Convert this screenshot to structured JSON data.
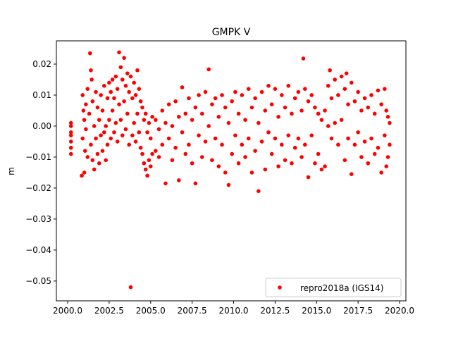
{
  "chart_data": {
    "type": "scatter",
    "title": "GMPK V",
    "xlabel": "",
    "ylabel": "m",
    "xlim": [
      1999.32,
      2020.38
    ],
    "ylim": [
      -0.0564,
      0.0275
    ],
    "xticks": [
      2000.0,
      2002.5,
      2005.0,
      2007.5,
      2010.0,
      2012.5,
      2015.0,
      2017.5,
      2020.0
    ],
    "xtick_labels": [
      "2000.0",
      "2002.5",
      "2005.0",
      "2007.5",
      "2010.0",
      "2012.5",
      "2015.0",
      "2017.5",
      "2020.0"
    ],
    "yticks": [
      0.02,
      0.01,
      0.0,
      -0.01,
      -0.02,
      -0.03,
      -0.04,
      -0.05
    ],
    "ytick_labels": [
      "0.02",
      "0.01",
      "0.00",
      "−0.01",
      "−0.02",
      "−0.03",
      "−0.04",
      "−0.05"
    ],
    "grid": false,
    "legend": {
      "placement": "lower-right",
      "entries": [
        "repro2018a (IGS14)"
      ]
    },
    "series": [
      {
        "name": "repro2018a (IGS14)",
        "color": "#ff0000",
        "marker": "dot",
        "points": [
          [
            2000.2,
            0.001
          ],
          [
            2000.2,
            -0.002
          ],
          [
            2000.2,
            -0.005
          ],
          [
            2000.2,
            -0.009
          ],
          [
            2000.2,
            -0.007
          ],
          [
            2000.2,
            -0.003
          ],
          [
            2000.2,
            0.0
          ],
          [
            2000.85,
            -0.016
          ],
          [
            2000.9,
            0.01
          ],
          [
            2000.9,
            -0.004
          ],
          [
            2000.95,
            0.005
          ],
          [
            2001.0,
            -0.015
          ],
          [
            2001.0,
            0.002
          ],
          [
            2001.05,
            -0.008
          ],
          [
            2001.1,
            0.007
          ],
          [
            2001.1,
            -0.001
          ],
          [
            2001.2,
            0.012
          ],
          [
            2001.2,
            -0.01
          ],
          [
            2001.3,
            0.004
          ],
          [
            2001.35,
            0.0235
          ],
          [
            2001.4,
            0.018
          ],
          [
            2001.4,
            -0.006
          ],
          [
            2001.45,
            0.015
          ],
          [
            2001.5,
            -0.011
          ],
          [
            2001.5,
            0.008
          ],
          [
            2001.6,
            0.0
          ],
          [
            2001.6,
            -0.014
          ],
          [
            2001.7,
            0.011
          ],
          [
            2001.7,
            -0.004
          ],
          [
            2001.8,
            0.006
          ],
          [
            2001.8,
            -0.009
          ],
          [
            2001.9,
            0.002
          ],
          [
            2001.9,
            -0.012
          ],
          [
            2002.0,
            0.01
          ],
          [
            2002.0,
            -0.003
          ],
          [
            2002.1,
            0.005
          ],
          [
            2002.1,
            -0.008
          ],
          [
            2002.2,
            0.013
          ],
          [
            2002.2,
            -0.002
          ],
          [
            2002.3,
            0.0
          ],
          [
            2002.3,
            -0.011
          ],
          [
            2002.4,
            0.009
          ],
          [
            2002.4,
            -0.006
          ],
          [
            2002.5,
            0.014
          ],
          [
            2002.5,
            0.002
          ],
          [
            2002.6,
            0.011
          ],
          [
            2002.6,
            -0.004
          ],
          [
            2002.7,
            0.015
          ],
          [
            2002.7,
            0.005
          ],
          [
            2002.8,
            0.009
          ],
          [
            2002.8,
            -0.002
          ],
          [
            2002.9,
            0.016
          ],
          [
            2002.9,
            0.001
          ],
          [
            2003.0,
            0.012
          ],
          [
            2003.0,
            -0.005
          ],
          [
            2003.1,
            0.0238
          ],
          [
            2003.1,
            0.007
          ],
          [
            2003.2,
            0.019
          ],
          [
            2003.2,
            0.002
          ],
          [
            2003.3,
            0.015
          ],
          [
            2003.3,
            -0.003
          ],
          [
            2003.4,
            0.022
          ],
          [
            2003.4,
            0.008
          ],
          [
            2003.5,
            0.013
          ],
          [
            2003.5,
            -0.001
          ],
          [
            2003.6,
            0.017
          ],
          [
            2003.6,
            0.004
          ],
          [
            2003.7,
            0.011
          ],
          [
            2003.7,
            -0.006
          ],
          [
            2003.8,
            0.016
          ],
          [
            2003.8,
            -0.052
          ],
          [
            2003.9,
            0.009
          ],
          [
            2003.9,
            -0.003
          ],
          [
            2004.0,
            0.014
          ],
          [
            2004.0,
            0.001
          ],
          [
            2004.1,
            0.01
          ],
          [
            2004.1,
            -0.005
          ],
          [
            2004.2,
            0.018
          ],
          [
            2004.2,
            0.004
          ],
          [
            2004.3,
            0.012
          ],
          [
            2004.3,
            -0.002
          ],
          [
            2004.4,
            0.008
          ],
          [
            2004.4,
            -0.007
          ],
          [
            2004.5,
            0.006
          ],
          [
            2004.5,
            -0.009
          ],
          [
            2004.6,
            0.002
          ],
          [
            2004.6,
            -0.012
          ],
          [
            2004.7,
            0.004
          ],
          [
            2004.7,
            -0.014
          ],
          [
            2004.8,
            -0.002
          ],
          [
            2004.8,
            -0.016
          ],
          [
            2004.9,
            0.001
          ],
          [
            2004.9,
            -0.011
          ],
          [
            2005.0,
            -0.004
          ],
          [
            2005.0,
            -0.013
          ],
          [
            2005.1,
            0.003
          ],
          [
            2005.1,
            -0.009
          ],
          [
            2005.3,
            0.002
          ],
          [
            2005.3,
            -0.008
          ],
          [
            2005.5,
            -0.001
          ],
          [
            2005.5,
            -0.01
          ],
          [
            2005.7,
            0.005
          ],
          [
            2005.7,
            -0.006
          ],
          [
            2005.9,
            0.001
          ],
          [
            2005.9,
            -0.0185
          ],
          [
            2006.1,
            0.007
          ],
          [
            2006.1,
            -0.004
          ],
          [
            2006.3,
            0.0
          ],
          [
            2006.3,
            -0.011
          ],
          [
            2006.5,
            0.008
          ],
          [
            2006.5,
            -0.007
          ],
          [
            2006.7,
            0.003
          ],
          [
            2006.7,
            -0.0175
          ],
          [
            2006.9,
            0.0125
          ],
          [
            2006.9,
            -0.002
          ],
          [
            2007.1,
            0.004
          ],
          [
            2007.1,
            -0.009
          ],
          [
            2007.3,
            0.009
          ],
          [
            2007.3,
            -0.006
          ],
          [
            2007.5,
            0.002
          ],
          [
            2007.5,
            -0.012
          ],
          [
            2007.7,
            0.006
          ],
          [
            2007.7,
            -0.0185
          ],
          [
            2007.9,
            0.01
          ],
          [
            2007.9,
            -0.003
          ],
          [
            2008.1,
            0.004
          ],
          [
            2008.1,
            -0.01
          ],
          [
            2008.3,
            0.011
          ],
          [
            2008.3,
            -0.005
          ],
          [
            2008.5,
            0.0183
          ],
          [
            2008.5,
            0.0
          ],
          [
            2008.7,
            0.007
          ],
          [
            2008.7,
            -0.011
          ],
          [
            2008.9,
            0.009
          ],
          [
            2008.9,
            -0.004
          ],
          [
            2009.1,
            0.003
          ],
          [
            2009.1,
            -0.013
          ],
          [
            2009.3,
            0.01
          ],
          [
            2009.3,
            -0.006
          ],
          [
            2009.5,
            0.006
          ],
          [
            2009.5,
            -0.015
          ],
          [
            2009.7,
            0.001
          ],
          [
            2009.7,
            -0.019
          ],
          [
            2009.9,
            0.008
          ],
          [
            2009.9,
            -0.009
          ],
          [
            2010.1,
            0.011
          ],
          [
            2010.1,
            -0.003
          ],
          [
            2010.3,
            0.004
          ],
          [
            2010.3,
            -0.012
          ],
          [
            2010.5,
            0.01
          ],
          [
            2010.5,
            -0.006
          ],
          [
            2010.7,
            0.002
          ],
          [
            2010.7,
            -0.01
          ],
          [
            2010.9,
            0.012
          ],
          [
            2010.9,
            -0.004
          ],
          [
            2011.1,
            0.006
          ],
          [
            2011.1,
            -0.015
          ],
          [
            2011.3,
            0.009
          ],
          [
            2011.3,
            -0.008
          ],
          [
            2011.5,
            0.001
          ],
          [
            2011.5,
            -0.021
          ],
          [
            2011.7,
            0.011
          ],
          [
            2011.7,
            -0.005
          ],
          [
            2011.9,
            0.005
          ],
          [
            2011.9,
            -0.014
          ],
          [
            2012.1,
            0.013
          ],
          [
            2012.1,
            -0.002
          ],
          [
            2012.3,
            0.007
          ],
          [
            2012.3,
            -0.009
          ],
          [
            2012.5,
            0.012
          ],
          [
            2012.5,
            -0.004
          ],
          [
            2012.7,
            0.003
          ],
          [
            2012.7,
            -0.013
          ],
          [
            2012.9,
            0.01
          ],
          [
            2012.9,
            -0.006
          ],
          [
            2013.1,
            0.006
          ],
          [
            2013.1,
            -0.011
          ],
          [
            2013.3,
            0.013
          ],
          [
            2013.3,
            -0.003
          ],
          [
            2013.5,
            0.004
          ],
          [
            2013.5,
            -0.012
          ],
          [
            2013.7,
            0.009
          ],
          [
            2013.7,
            -0.007
          ],
          [
            2013.9,
            0.011
          ],
          [
            2013.9,
            -0.004
          ],
          [
            2014.1,
            0.005
          ],
          [
            2014.1,
            -0.01
          ],
          [
            2014.2,
            0.0218
          ],
          [
            2014.3,
            0.012
          ],
          [
            2014.3,
            -0.006
          ],
          [
            2014.5,
            0.008
          ],
          [
            2014.5,
            -0.0165
          ],
          [
            2014.7,
            0.01
          ],
          [
            2014.7,
            -0.003
          ],
          [
            2014.9,
            0.006
          ],
          [
            2014.9,
            -0.012
          ],
          [
            2015.1,
            0.004
          ],
          [
            2015.1,
            -0.009
          ],
          [
            2015.3,
            0.002
          ],
          [
            2015.3,
            -0.014
          ],
          [
            2015.5,
            0.005
          ],
          [
            2015.5,
            -0.013
          ],
          [
            2015.7,
            0.013
          ],
          [
            2015.7,
            0.0
          ],
          [
            2015.8,
            0.018
          ],
          [
            2015.9,
            0.009
          ],
          [
            2015.9,
            -0.004
          ],
          [
            2016.1,
            0.015
          ],
          [
            2016.1,
            0.001
          ],
          [
            2016.3,
            0.01
          ],
          [
            2016.3,
            -0.006
          ],
          [
            2016.5,
            0.016
          ],
          [
            2016.5,
            0.002
          ],
          [
            2016.7,
            0.012
          ],
          [
            2016.7,
            -0.011
          ],
          [
            2016.8,
            0.017
          ],
          [
            2016.9,
            0.007
          ],
          [
            2016.9,
            -0.004
          ],
          [
            2017.1,
            0.014
          ],
          [
            2017.1,
            -0.0155
          ],
          [
            2017.3,
            0.008
          ],
          [
            2017.3,
            -0.006
          ],
          [
            2017.5,
            0.011
          ],
          [
            2017.5,
            -0.002
          ],
          [
            2017.7,
            0.005
          ],
          [
            2017.7,
            -0.01
          ],
          [
            2017.9,
            0.009
          ],
          [
            2017.9,
            -0.005
          ],
          [
            2018.1,
            0.006
          ],
          [
            2018.1,
            -0.012
          ],
          [
            2018.3,
            0.01
          ],
          [
            2018.3,
            -0.004
          ],
          [
            2018.5,
            0.004
          ],
          [
            2018.5,
            -0.009
          ],
          [
            2018.7,
            0.0115
          ],
          [
            2018.7,
            -0.007
          ],
          [
            2018.9,
            0.007
          ],
          [
            2018.9,
            -0.015
          ],
          [
            2019.1,
            0.012
          ],
          [
            2019.1,
            -0.003
          ],
          [
            2019.2,
            0.005
          ],
          [
            2019.2,
            -0.013
          ],
          [
            2019.3,
            0.003
          ],
          [
            2019.3,
            -0.01
          ],
          [
            2019.4,
            0.001
          ],
          [
            2019.4,
            -0.006
          ]
        ]
      }
    ]
  }
}
